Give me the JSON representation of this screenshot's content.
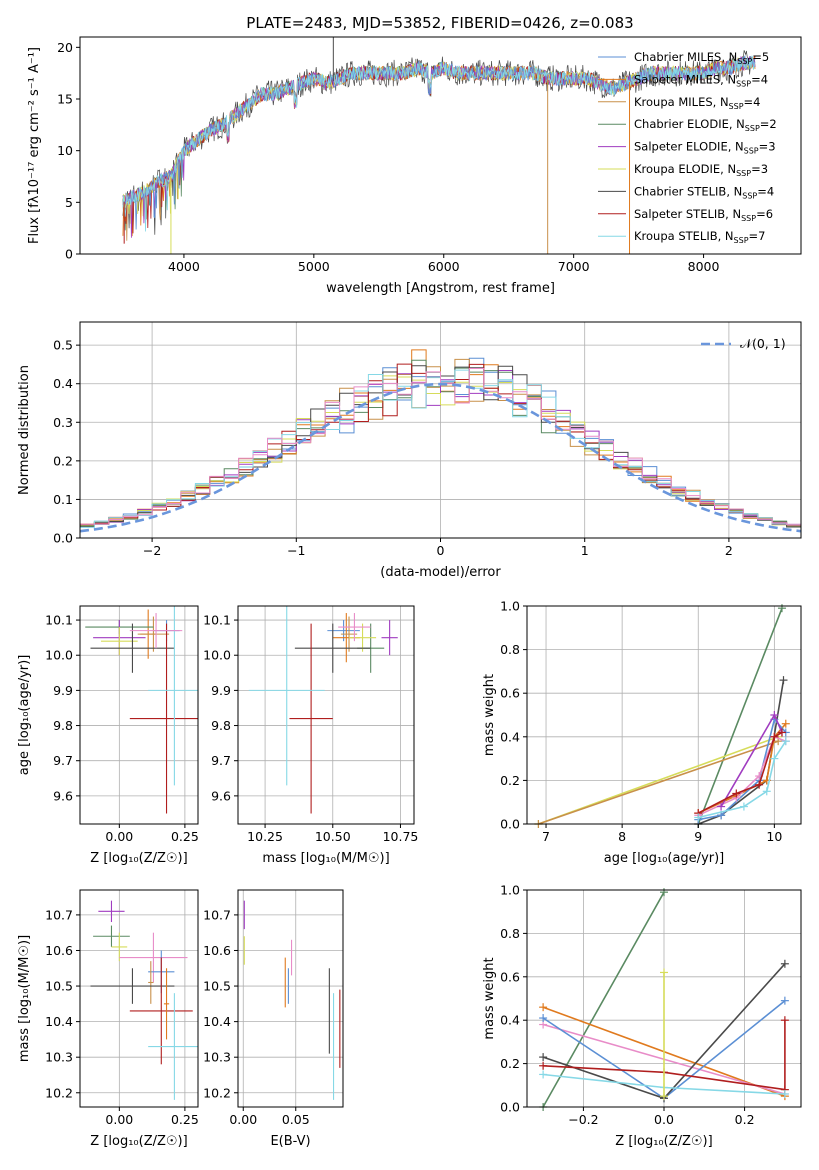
{
  "figure_title": "PLATE=2483, MJD=53852, FIBERID=0426, z=0.083",
  "colors": {
    "Chabrier MILES": "#5b8fd4",
    "Salpeter MILES": "#e07a1e",
    "Kroupa MILES": "#c8904a",
    "Chabrier ELODIE": "#5a8a62",
    "Salpeter ELODIE": "#a03cc0",
    "Kroupa ELODIE": "#d6dc5a",
    "Chabrier STELIB": "#4a4a4a",
    "Salpeter STELIB": "#b01e1e",
    "Kroupa STELIB": "#86d8e6",
    "pink": "#e88cc8",
    "normal": "#6a96dc",
    "grid": "#b0b0b0"
  },
  "chart_data": [
    {
      "id": "spectrum",
      "type": "line",
      "title": "PLATE=2483, MJD=53852, FIBERID=0426, z=0.083",
      "xlabel": "wavelength [Angstrom, rest frame]",
      "ylabel": "Flux [fλ10⁻¹⁷ erg cm⁻² s⁻¹ A⁻¹]",
      "xlim": [
        3200,
        8750
      ],
      "ylim": [
        0,
        21
      ],
      "xticks": [
        "4000",
        "5000",
        "6000",
        "7000",
        "8000"
      ],
      "yticks": [
        "0",
        "5",
        "10",
        "15",
        "20"
      ],
      "grid": false,
      "legend_position": "right",
      "legend": [
        {
          "label": "Chabrier MILES, N",
          "sub": "SSP",
          "suffix": "=5",
          "color": "#5b8fd4"
        },
        {
          "label": "Salpeter MILES, N",
          "sub": "SSP",
          "suffix": "=4",
          "color": "#e07a1e"
        },
        {
          "label": "Kroupa MILES, N",
          "sub": "SSP",
          "suffix": "=4",
          "color": "#c8904a"
        },
        {
          "label": "Chabrier ELODIE, N",
          "sub": "SSP",
          "suffix": "=2",
          "color": "#5a8a62"
        },
        {
          "label": "Salpeter ELODIE, N",
          "sub": "SSP",
          "suffix": "=3",
          "color": "#a03cc0"
        },
        {
          "label": "Kroupa ELODIE, N",
          "sub": "SSP",
          "suffix": "=3",
          "color": "#d6dc5a"
        },
        {
          "label": "Chabrier STELIB, N",
          "sub": "SSP",
          "suffix": "=4",
          "color": "#4a4a4a"
        },
        {
          "label": "Salpeter STELIB, N",
          "sub": "SSP",
          "suffix": "=6",
          "color": "#b01e1e"
        },
        {
          "label": "Kroupa STELIB, N",
          "sub": "SSP",
          "suffix": "=7",
          "color": "#86d8e6"
        }
      ],
      "series_envelope": {
        "x": [
          3530,
          3600,
          3700,
          3800,
          3900,
          4000,
          4100,
          4200,
          4300,
          4400,
          4500,
          4600,
          4700,
          4800,
          4900,
          5000,
          5100,
          5200,
          5300,
          5400,
          5500,
          5600,
          5700,
          5800,
          5900,
          6000,
          6100,
          6200,
          6300,
          6400,
          6500,
          6600,
          6700,
          6800,
          6900,
          7000,
          7100,
          7200,
          7300,
          7400,
          7500,
          7600,
          7700,
          7800,
          7900,
          8000,
          8100,
          8200,
          8300,
          8400
        ],
        "y": [
          5,
          5.5,
          6,
          7,
          7.5,
          10,
          11,
          12,
          12.5,
          13.5,
          14.5,
          15.5,
          15.5,
          16,
          16.5,
          17,
          16.5,
          17,
          17.5,
          17.5,
          17.5,
          17.5,
          17.5,
          18,
          17.5,
          18,
          17.5,
          17.5,
          17.5,
          17.5,
          17.5,
          17.5,
          17.5,
          17,
          17,
          17,
          17,
          16.5,
          16,
          16.5,
          17,
          17.5,
          17.5,
          17.5,
          17.5,
          17.5,
          18,
          18,
          18.5,
          18.5
        ]
      },
      "spikes": [
        {
          "x": 3900,
          "y": 0
        },
        {
          "x": 5150,
          "y": 21
        },
        {
          "x": 6800,
          "y": 0
        },
        {
          "x": 7430,
          "y": 0
        },
        {
          "x": 3540,
          "y": 1
        }
      ]
    },
    {
      "id": "residual_histogram",
      "type": "bar",
      "xlabel": "(data-model)/error",
      "ylabel": "Normed distribution",
      "xlim": [
        -2.5,
        2.5
      ],
      "ylim": [
        0,
        0.56
      ],
      "xticks": [
        "−2",
        "−1",
        "0",
        "1",
        "2"
      ],
      "yticks": [
        "0.0",
        "0.1",
        "0.2",
        "0.3",
        "0.4",
        "0.5"
      ],
      "grid": true,
      "legend_position": "top-right",
      "legend": [
        {
          "label": "𝒩(0, 1)",
          "style": "dashed",
          "color": "#6a96dc"
        }
      ],
      "bin_width": 0.1,
      "bin_start": -2.5,
      "reference_curve": "normal pdf, mean 0, sigma 1"
    },
    {
      "id": "age_vs_Z",
      "type": "scatter",
      "xlabel": "Z [log₁₀(Z/Z☉)]",
      "ylabel": "age  [log₁₀(age/yr)]",
      "xlim": [
        -0.15,
        0.3
      ],
      "ylim": [
        9.52,
        10.14
      ],
      "xticks": [
        "0.00",
        "0.25"
      ],
      "yticks": [
        "9.6",
        "9.7",
        "9.8",
        "9.9",
        "10.0",
        "10.1"
      ],
      "grid": true,
      "points": [
        {
          "series": "Chabrier MILES",
          "x": 0.18,
          "y": 10.07,
          "xerr": 0.05,
          "yerr": 0.03
        },
        {
          "series": "Salpeter MILES",
          "x": 0.11,
          "y": 10.06,
          "xerr": 0.03,
          "yerr": 0.07
        },
        {
          "series": "Kroupa MILES",
          "x": 0.13,
          "y": 10.06,
          "xerr": 0.06,
          "yerr": 0.05
        },
        {
          "series": "Chabrier ELODIE",
          "x": 0.0,
          "y": 10.08,
          "xerr": 0.13,
          "yerr": 0.02
        },
        {
          "series": "Salpeter ELODIE",
          "x": 0.0,
          "y": 10.05,
          "xerr": 0.1,
          "yerr": 0.05
        },
        {
          "series": "Kroupa ELODIE",
          "x": 0.0,
          "y": 10.04,
          "xerr": 0.07,
          "yerr": 0.04
        },
        {
          "series": "Chabrier STELIB",
          "x": 0.05,
          "y": 10.02,
          "xerr": 0.16,
          "yerr": 0.07
        },
        {
          "series": "Salpeter STELIB",
          "x": 0.18,
          "y": 9.82,
          "xerr": 0.14,
          "yerr": 0.27
        },
        {
          "series": "Kroupa STELIB",
          "x": 0.21,
          "y": 9.9,
          "xerr": 0.1,
          "yerr": 0.27
        },
        {
          "series": "pink",
          "x": 0.14,
          "y": 10.07,
          "xerr": 0.1,
          "yerr": 0.05
        }
      ]
    },
    {
      "id": "age_vs_mass",
      "type": "scatter",
      "xlabel": "mass [log₁₀(M/M☉)]",
      "ylabel": "",
      "xlim": [
        10.15,
        10.8
      ],
      "ylim": [
        9.52,
        10.14
      ],
      "xticks": [
        "10.25",
        "10.50",
        "10.75"
      ],
      "yticks": [
        "9.6",
        "9.7",
        "9.8",
        "9.9",
        "10.0",
        "10.1"
      ],
      "grid": true,
      "points": [
        {
          "series": "Chabrier MILES",
          "x": 10.54,
          "y": 10.07,
          "xerr": 0.06,
          "yerr": 0.03
        },
        {
          "series": "Salpeter MILES",
          "x": 10.55,
          "y": 10.05,
          "xerr": 0.05,
          "yerr": 0.07
        },
        {
          "series": "Kroupa MILES",
          "x": 10.56,
          "y": 10.06,
          "xerr": 0.03,
          "yerr": 0.05
        },
        {
          "series": "Chabrier ELODIE",
          "x": 10.64,
          "y": 10.02,
          "xerr": 0.05,
          "yerr": 0.07
        },
        {
          "series": "Salpeter ELODIE",
          "x": 10.71,
          "y": 10.05,
          "xerr": 0.03,
          "yerr": 0.05
        },
        {
          "series": "Kroupa ELODIE",
          "x": 10.61,
          "y": 10.05,
          "xerr": 0.05,
          "yerr": 0.04
        },
        {
          "series": "Chabrier STELIB",
          "x": 10.5,
          "y": 10.02,
          "xerr": 0.14,
          "yerr": 0.07
        },
        {
          "series": "Salpeter STELIB",
          "x": 10.42,
          "y": 9.82,
          "xerr": 0.08,
          "yerr": 0.27
        },
        {
          "series": "Kroupa STELIB",
          "x": 10.33,
          "y": 9.9,
          "xerr": 0.14,
          "yerr": 0.27
        },
        {
          "series": "pink",
          "x": 10.58,
          "y": 10.08,
          "xerr": 0.06,
          "yerr": 0.04
        }
      ]
    },
    {
      "id": "weight_vs_age",
      "type": "line",
      "xlabel": "age  [log₁₀(age/yr)]",
      "ylabel": "mass weight",
      "xlim": [
        6.75,
        10.35
      ],
      "ylim": [
        0,
        1
      ],
      "xticks": [
        "7",
        "8",
        "9",
        "10"
      ],
      "yticks": [
        "0.0",
        "0.2",
        "0.4",
        "0.6",
        "0.8",
        "1.0"
      ],
      "grid": true,
      "series": [
        {
          "name": "Chabrier ELODIE",
          "x": [
            9.0,
            10.1
          ],
          "y": [
            0.0,
            0.99
          ]
        },
        {
          "name": "Kroupa ELODIE",
          "x": [
            6.9,
            10.05
          ],
          "y": [
            0.0,
            0.4
          ]
        },
        {
          "name": "Kroupa MILES",
          "x": [
            6.9,
            10.05
          ],
          "y": [
            0.0,
            0.38
          ]
        },
        {
          "name": "Chabrier STELIB",
          "x": [
            9.0,
            9.3,
            9.9,
            10.12
          ],
          "y": [
            0.0,
            0.04,
            0.2,
            0.66
          ]
        },
        {
          "name": "Salpeter MILES",
          "x": [
            9.0,
            9.5,
            9.9,
            10.0,
            10.15
          ],
          "y": [
            0.05,
            0.13,
            0.2,
            0.4,
            0.46
          ]
        },
        {
          "name": "Chabrier MILES",
          "x": [
            9.0,
            9.3,
            9.8,
            10.0,
            10.15
          ],
          "y": [
            0.02,
            0.04,
            0.2,
            0.48,
            0.42
          ]
        },
        {
          "name": "pink",
          "x": [
            9.0,
            9.5,
            9.8,
            10.0,
            10.15
          ],
          "y": [
            0.04,
            0.12,
            0.22,
            0.4,
            0.38
          ]
        },
        {
          "name": "Salpeter ELODIE",
          "x": [
            9.3,
            10.0,
            10.1
          ],
          "y": [
            0.08,
            0.5,
            0.42
          ]
        },
        {
          "name": "Salpeter STELIB",
          "x": [
            9.0,
            9.5,
            9.8,
            10.0,
            10.1
          ],
          "y": [
            0.05,
            0.14,
            0.18,
            0.4,
            0.42
          ]
        },
        {
          "name": "Kroupa STELIB",
          "x": [
            9.0,
            9.6,
            9.9,
            10.0,
            10.15
          ],
          "y": [
            0.03,
            0.08,
            0.15,
            0.3,
            0.38
          ]
        }
      ]
    },
    {
      "id": "mass_vs_Z",
      "type": "scatter",
      "xlabel": "Z [log₁₀(Z/Z☉)]",
      "ylabel": "mass [log₁₀(M/M☉)]",
      "xlim": [
        -0.15,
        0.3
      ],
      "ylim": [
        10.16,
        10.77
      ],
      "xticks": [
        "0.00",
        "0.25"
      ],
      "yticks": [
        "10.2",
        "10.3",
        "10.4",
        "10.5",
        "10.6",
        "10.7"
      ],
      "grid": true,
      "points": [
        {
          "series": "Salpeter ELODIE",
          "x": -0.03,
          "y": 10.71,
          "xerr": 0.05,
          "yerr": 0.03
        },
        {
          "series": "Chabrier ELODIE",
          "x": -0.03,
          "y": 10.64,
          "xerr": 0.07,
          "yerr": 0.03
        },
        {
          "series": "Kroupa ELODIE",
          "x": 0.0,
          "y": 10.61,
          "xerr": 0.03,
          "yerr": 0.04
        },
        {
          "series": "pink",
          "x": 0.13,
          "y": 10.58,
          "xerr": 0.13,
          "yerr": 0.07
        },
        {
          "series": "Chabrier MILES",
          "x": 0.16,
          "y": 10.54,
          "xerr": 0.05,
          "yerr": 0.06
        },
        {
          "series": "Kroupa MILES",
          "x": 0.12,
          "y": 10.51,
          "xerr": 0.01,
          "yerr": 0.06
        },
        {
          "series": "Chabrier STELIB",
          "x": 0.05,
          "y": 10.5,
          "xerr": 0.16,
          "yerr": 0.05
        },
        {
          "series": "Salpeter STELIB",
          "x": 0.16,
          "y": 10.43,
          "xerr": 0.12,
          "yerr": 0.15
        },
        {
          "series": "Kroupa STELIB",
          "x": 0.21,
          "y": 10.33,
          "xerr": 0.1,
          "yerr": 0.15
        },
        {
          "series": "Salpeter MILES",
          "x": 0.18,
          "y": 10.45,
          "xerr": 0.01,
          "yerr": 0.1
        }
      ]
    },
    {
      "id": "mass_vs_EBV",
      "type": "scatter",
      "xlabel": "E(B-V)",
      "ylabel": "",
      "xlim": [
        -0.005,
        0.095
      ],
      "ylim": [
        10.16,
        10.77
      ],
      "xticks": [
        "0.00",
        "0.05"
      ],
      "yticks": [
        "10.2",
        "10.3",
        "10.4",
        "10.5",
        "10.6",
        "10.7"
      ],
      "grid": true,
      "points": [
        {
          "series": "Salpeter ELODIE",
          "x": 0.001,
          "y": 10.7,
          "xerr": 0,
          "yerr": 0.04
        },
        {
          "series": "Kroupa ELODIE",
          "x": 0.001,
          "y": 10.6,
          "xerr": 0,
          "yerr": 0.04
        },
        {
          "series": "pink",
          "x": 0.046,
          "y": 10.58,
          "xerr": 0,
          "yerr": 0.05
        },
        {
          "series": "Salpeter MILES",
          "x": 0.04,
          "y": 10.51,
          "xerr": 0,
          "yerr": 0.07
        },
        {
          "series": "Chabrier MILES",
          "x": 0.043,
          "y": 10.5,
          "xerr": 0,
          "yerr": 0.05
        },
        {
          "series": "Chabrier STELIB",
          "x": 0.082,
          "y": 10.43,
          "xerr": 0,
          "yerr": 0.12
        },
        {
          "series": "Kroupa STELIB",
          "x": 0.086,
          "y": 10.33,
          "xerr": 0,
          "yerr": 0.15
        },
        {
          "series": "Salpeter STELIB",
          "x": 0.092,
          "y": 10.38,
          "xerr": 0,
          "yerr": 0.11
        }
      ]
    },
    {
      "id": "weight_vs_Z",
      "type": "line",
      "xlabel": "Z [log₁₀(Z/Z☉)]",
      "ylabel": "mass weight",
      "xlim": [
        -0.34,
        0.34
      ],
      "ylim": [
        0,
        1
      ],
      "xticks": [
        "−0.2",
        "0.0",
        "0.2"
      ],
      "yticks": [
        "0.0",
        "0.2",
        "0.4",
        "0.6",
        "0.8",
        "1.0"
      ],
      "grid": true,
      "series": [
        {
          "name": "Chabrier ELODIE",
          "x": [
            -0.3,
            0.0
          ],
          "y": [
            0.0,
            0.99
          ]
        },
        {
          "name": "Salpeter MILES",
          "x": [
            -0.3,
            0.3
          ],
          "y": [
            0.46,
            0.05
          ]
        },
        {
          "name": "pink",
          "x": [
            -0.3,
            0.3
          ],
          "y": [
            0.38,
            0.06
          ]
        },
        {
          "name": "Chabrier MILES",
          "x": [
            -0.3,
            0.0,
            0.3
          ],
          "y": [
            0.41,
            0.04,
            0.49
          ]
        },
        {
          "name": "Chabrier STELIB",
          "x": [
            -0.3,
            0.0,
            0.3
          ],
          "y": [
            0.23,
            0.04,
            0.66
          ]
        },
        {
          "name": "Salpeter STELIB",
          "x": [
            -0.3,
            0.0,
            0.3,
            0.3
          ],
          "y": [
            0.19,
            0.16,
            0.08,
            0.4
          ]
        },
        {
          "name": "Kroupa STELIB",
          "x": [
            -0.3,
            0.0,
            0.3
          ],
          "y": [
            0.15,
            0.09,
            0.06
          ]
        },
        {
          "name": "Kroupa ELODIE",
          "x": [
            0.0,
            0.0
          ],
          "y": [
            0.05,
            0.62
          ]
        }
      ]
    }
  ]
}
